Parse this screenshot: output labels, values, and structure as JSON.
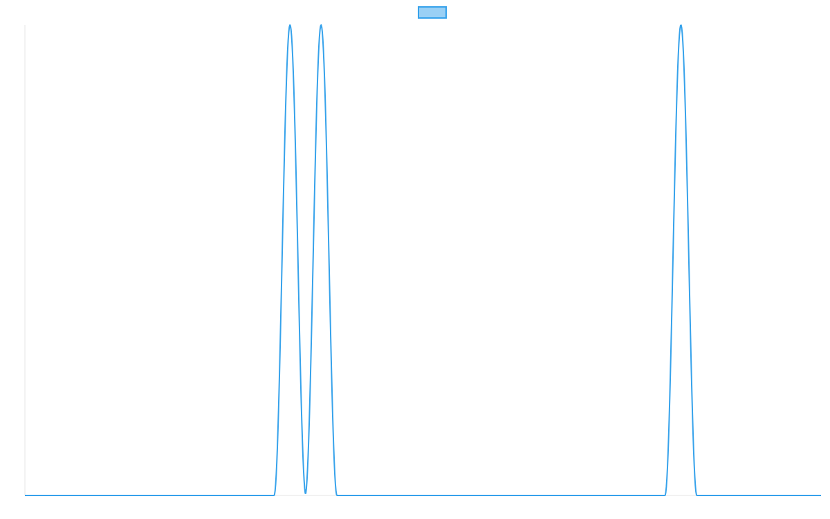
{
  "chart_data": {
    "type": "line",
    "title": "",
    "xlabel": "",
    "ylabel": "",
    "legend": {
      "position": "top-center",
      "entries": [
        {
          "label": "",
          "color": "#36a2eb",
          "fill": "#9ad0f5"
        }
      ]
    },
    "xlim": [
      0,
      100
    ],
    "ylim": [
      0,
      1
    ],
    "grid": false,
    "series": [
      {
        "color": "#36a2eb",
        "peaks": [
          {
            "center": 33.3,
            "half_width": 2.0,
            "height": 1
          },
          {
            "center": 37.2,
            "half_width": 2.0,
            "height": 1
          },
          {
            "center": 82.4,
            "half_width": 2.0,
            "height": 1
          }
        ],
        "x": [
          0,
          31.3,
          32.3,
          33.3,
          34.3,
          35.2,
          36.2,
          37.2,
          38.2,
          39.2,
          80.4,
          81.4,
          82.4,
          83.4,
          84.4,
          100
        ],
        "values": [
          0,
          0,
          0.5,
          1,
          0.5,
          0,
          0.5,
          1,
          0.5,
          0,
          0,
          0.5,
          1,
          0.5,
          0,
          0
        ]
      }
    ]
  }
}
